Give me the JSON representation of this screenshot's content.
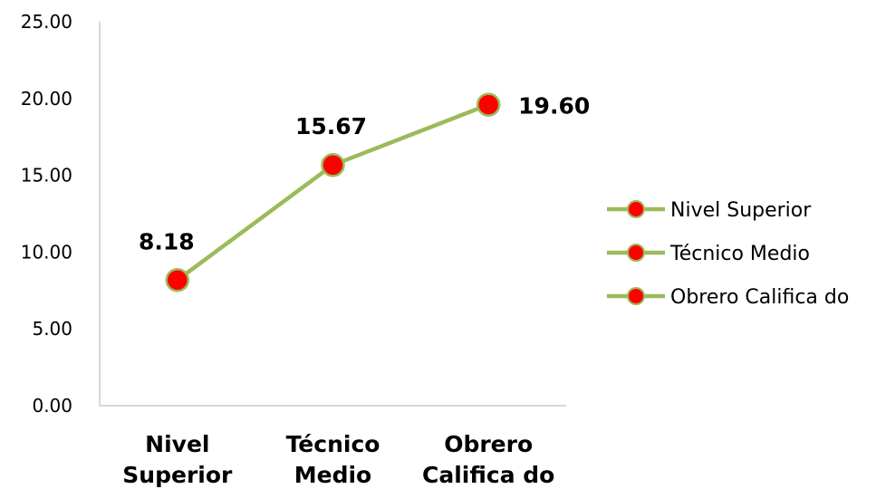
{
  "chart_data": {
    "type": "line",
    "categories": [
      [
        "Nivel",
        "Superior"
      ],
      [
        "Técnico",
        "Medio"
      ],
      [
        "Obrero",
        "Califica do"
      ]
    ],
    "values": [
      8.18,
      15.67,
      19.6
    ],
    "data_labels": [
      "8.18",
      "15.67",
      "19.60"
    ],
    "ylim": [
      0,
      25
    ],
    "yticks": [
      "0.00",
      "5.00",
      "10.00",
      "15.00",
      "20.00",
      "25.00"
    ],
    "grid": false,
    "legend": {
      "placement": "right",
      "entries": [
        "Nivel Superior",
        "Técnico Medio",
        "Obrero Califica do"
      ]
    },
    "colors": {
      "line": "#9BBB59",
      "marker_fill": "#FF0000",
      "marker_edge": "#9BBB59",
      "axis": "#BFBFBF"
    }
  }
}
